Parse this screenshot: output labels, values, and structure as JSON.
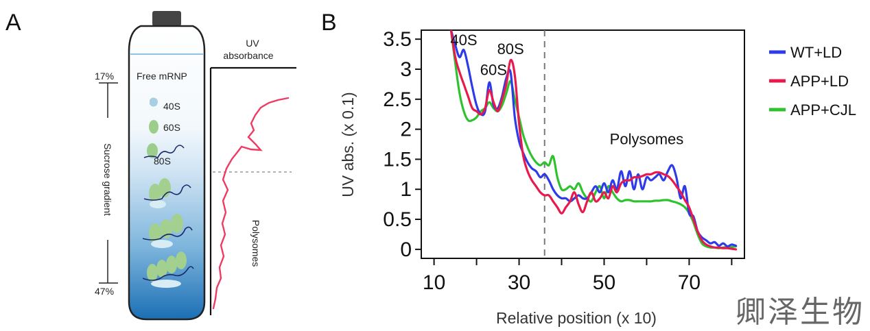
{
  "panel_a": {
    "letter": "A",
    "uv_label_line1": "UV",
    "uv_label_line2": "absorbance",
    "top_percent": "17%",
    "bottom_percent": "47%",
    "gradient_label": "Sucrose gradient",
    "free_mrnp": "Free mRNP",
    "labels": [
      "40S",
      "60S",
      "80S"
    ],
    "polysomes_label": "Polysomes",
    "trace_color": "#ee3b63"
  },
  "chart_data": {
    "type": "line",
    "panel_letter": "B",
    "title": "",
    "xlabel": "Relative position (x 10)",
    "ylabel": "UV abs. (x 0.1)",
    "xlim": [
      7,
      83
    ],
    "ylim": [
      -0.15,
      3.65
    ],
    "xticks": [
      10,
      30,
      50,
      70
    ],
    "minor_xticks": [
      20,
      40,
      60,
      80
    ],
    "yticks": [
      0,
      0.5,
      1,
      1.5,
      2,
      2.5,
      3,
      3.5
    ],
    "ytick_labels": [
      "0",
      "0.5",
      "1",
      "1.5",
      "2",
      "2.5",
      "3",
      "3.5"
    ],
    "cutoff_x": 36,
    "annotations": [
      {
        "text": "40S",
        "x": 17,
        "y": 3.4
      },
      {
        "text": "80S",
        "x": 28,
        "y": 3.25
      },
      {
        "text": "60S",
        "x": 24,
        "y": 2.9
      },
      {
        "text": "Polysomes",
        "x": 60,
        "y": 1.75
      }
    ],
    "series": [
      {
        "name": "WT+LD",
        "color": "#2d3be8",
        "x": [
          14,
          15,
          16,
          17,
          18,
          19,
          20,
          21,
          22,
          23,
          24,
          25,
          26,
          27,
          28,
          29,
          30,
          31,
          32,
          33,
          34,
          35,
          36,
          37,
          38,
          39,
          40,
          41,
          42,
          43,
          44,
          45,
          46,
          47,
          48,
          49,
          50,
          51,
          52,
          53,
          54,
          55,
          56,
          57,
          58,
          59,
          60,
          61,
          62,
          63,
          64,
          65,
          66,
          67,
          68,
          69,
          70,
          71,
          72,
          73,
          74,
          75,
          76,
          77,
          78,
          79,
          80,
          81
        ],
        "y": [
          3.65,
          3.4,
          3.2,
          3.32,
          3.05,
          2.7,
          2.4,
          2.25,
          2.3,
          2.78,
          2.4,
          2.35,
          2.55,
          2.85,
          2.95,
          2.2,
          1.8,
          1.6,
          1.45,
          1.35,
          1.3,
          1.2,
          1.25,
          1.15,
          1.0,
          0.9,
          0.85,
          0.85,
          0.8,
          0.85,
          0.9,
          0.85,
          0.85,
          0.95,
          1.05,
          0.95,
          1.1,
          0.95,
          1.15,
          1.0,
          1.3,
          1.05,
          1.3,
          1.0,
          1.25,
          1.0,
          1.2,
          1.15,
          1.2,
          1.25,
          1.15,
          1.3,
          1.4,
          1.2,
          0.85,
          1.05,
          0.6,
          0.55,
          0.3,
          0.2,
          0.15,
          0.1,
          0.12,
          0.06,
          0.1,
          0.05,
          0.08,
          0.06
        ]
      },
      {
        "name": "APP+LD",
        "color": "#e8194d",
        "x": [
          14,
          15,
          16,
          17,
          18,
          19,
          20,
          21,
          22,
          23,
          24,
          25,
          26,
          27,
          28,
          29,
          30,
          31,
          32,
          33,
          34,
          35,
          36,
          37,
          38,
          39,
          40,
          41,
          42,
          43,
          44,
          45,
          46,
          47,
          48,
          49,
          50,
          51,
          52,
          53,
          54,
          55,
          56,
          57,
          58,
          59,
          60,
          61,
          62,
          63,
          64,
          65,
          66,
          67,
          68,
          69,
          70,
          71,
          72,
          73,
          74,
          75,
          76,
          77,
          78,
          79,
          80,
          81
        ],
        "y": [
          3.65,
          3.2,
          2.95,
          2.75,
          2.55,
          2.35,
          2.3,
          2.25,
          2.35,
          2.65,
          2.45,
          2.3,
          2.5,
          2.75,
          3.15,
          2.9,
          2.1,
          1.55,
          1.3,
          1.15,
          1.05,
          0.95,
          0.9,
          0.9,
          0.8,
          0.7,
          0.6,
          0.7,
          0.8,
          0.95,
          0.75,
          0.62,
          0.8,
          0.95,
          0.8,
          0.85,
          0.95,
          0.85,
          1.05,
          0.95,
          1.1,
          1.15,
          1.15,
          1.2,
          1.2,
          1.22,
          1.25,
          1.25,
          1.28,
          1.28,
          1.25,
          1.22,
          1.15,
          1.05,
          0.95,
          0.82,
          0.7,
          0.5,
          0.3,
          0.15,
          0.08,
          0.05,
          0.03,
          0.03,
          0.02,
          0.02,
          0.01,
          0.0
        ]
      },
      {
        "name": "APP+CJL",
        "color": "#2ec32e",
        "x": [
          14,
          15,
          16,
          17,
          18,
          19,
          20,
          21,
          22,
          23,
          24,
          25,
          26,
          27,
          28,
          29,
          30,
          31,
          32,
          33,
          34,
          35,
          36,
          37,
          38,
          39,
          40,
          41,
          42,
          43,
          44,
          45,
          46,
          47,
          48,
          49,
          50,
          51,
          52,
          53,
          54,
          55,
          56,
          57,
          58,
          59,
          60,
          61,
          62,
          63,
          64,
          65,
          66,
          67,
          68,
          69,
          70,
          71,
          72,
          73,
          74,
          75,
          76,
          77,
          78,
          79,
          80,
          81
        ],
        "y": [
          3.65,
          3.1,
          2.6,
          2.3,
          2.15,
          2.15,
          2.2,
          2.3,
          2.35,
          2.45,
          2.35,
          2.3,
          2.4,
          2.6,
          2.8,
          2.5,
          2.2,
          1.9,
          1.7,
          1.55,
          1.45,
          1.4,
          1.45,
          1.4,
          1.55,
          1.2,
          1.0,
          1.0,
          1.05,
          1.0,
          1.1,
          0.95,
          0.85,
          0.8,
          0.95,
          1.05,
          0.85,
          1.05,
          0.95,
          0.85,
          0.8,
          0.82,
          0.82,
          0.8,
          0.8,
          0.8,
          0.8,
          0.8,
          0.81,
          0.81,
          0.82,
          0.82,
          0.8,
          0.78,
          0.75,
          0.7,
          0.6,
          0.45,
          0.25,
          0.1,
          0.05,
          0.03,
          0.03,
          0.02,
          0.03,
          0.04,
          0.04,
          0.05
        ]
      }
    ]
  },
  "watermark": "卿泽生物"
}
